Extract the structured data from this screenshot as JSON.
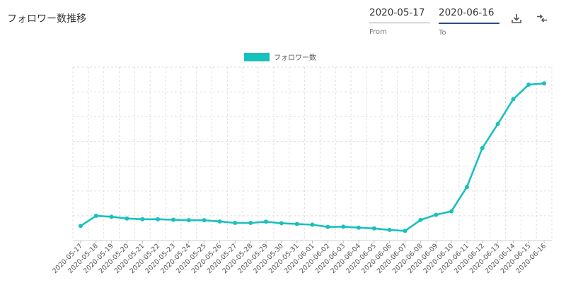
{
  "header": {
    "title": "フォロワー数推移",
    "from_value": "2020-05-17",
    "from_label": "From",
    "to_value": "2020-06-16",
    "to_label": "To"
  },
  "icons": {
    "download": "download-icon",
    "compare": "compare-arrows-icon"
  },
  "colors": {
    "series": "#19c1bd",
    "grid": "#e0e0e0",
    "axis_text": "#555555"
  },
  "chart_data": {
    "type": "line",
    "title": "",
    "xlabel": "",
    "ylabel": "",
    "legend_position": "top",
    "grid": true,
    "y_ticks_shown": false,
    "categories": [
      "2020-05-17",
      "2020-05-18",
      "2020-05-19",
      "2020-05-20",
      "2020-05-21",
      "2020-05-22",
      "2020-05-23",
      "2020-05-24",
      "2020-05-25",
      "2020-05-26",
      "2020-05-27",
      "2020-05-28",
      "2020-05-29",
      "2020-05-30",
      "2020-05-31",
      "2020-06-01",
      "2020-06-02",
      "2020-06-03",
      "2020-06-04",
      "2020-06-05",
      "2020-06-06",
      "2020-06-07",
      "2020-06-08",
      "2020-06-09",
      "2020-06-10",
      "2020-06-11",
      "2020-06-12",
      "2020-06-13",
      "2020-06-14",
      "2020-06-15",
      "2020-06-16"
    ],
    "series": [
      {
        "name": "フォロワー数",
        "values": [
          0.59,
          1.0,
          0.96,
          0.89,
          0.86,
          0.86,
          0.84,
          0.82,
          0.82,
          0.77,
          0.71,
          0.71,
          0.76,
          0.7,
          0.67,
          0.64,
          0.55,
          0.56,
          0.52,
          0.49,
          0.43,
          0.39,
          0.83,
          1.04,
          1.18,
          2.16,
          3.73,
          4.7,
          5.7,
          6.29,
          6.34
        ]
      }
    ],
    "ylim": [
      0,
      7
    ]
  }
}
